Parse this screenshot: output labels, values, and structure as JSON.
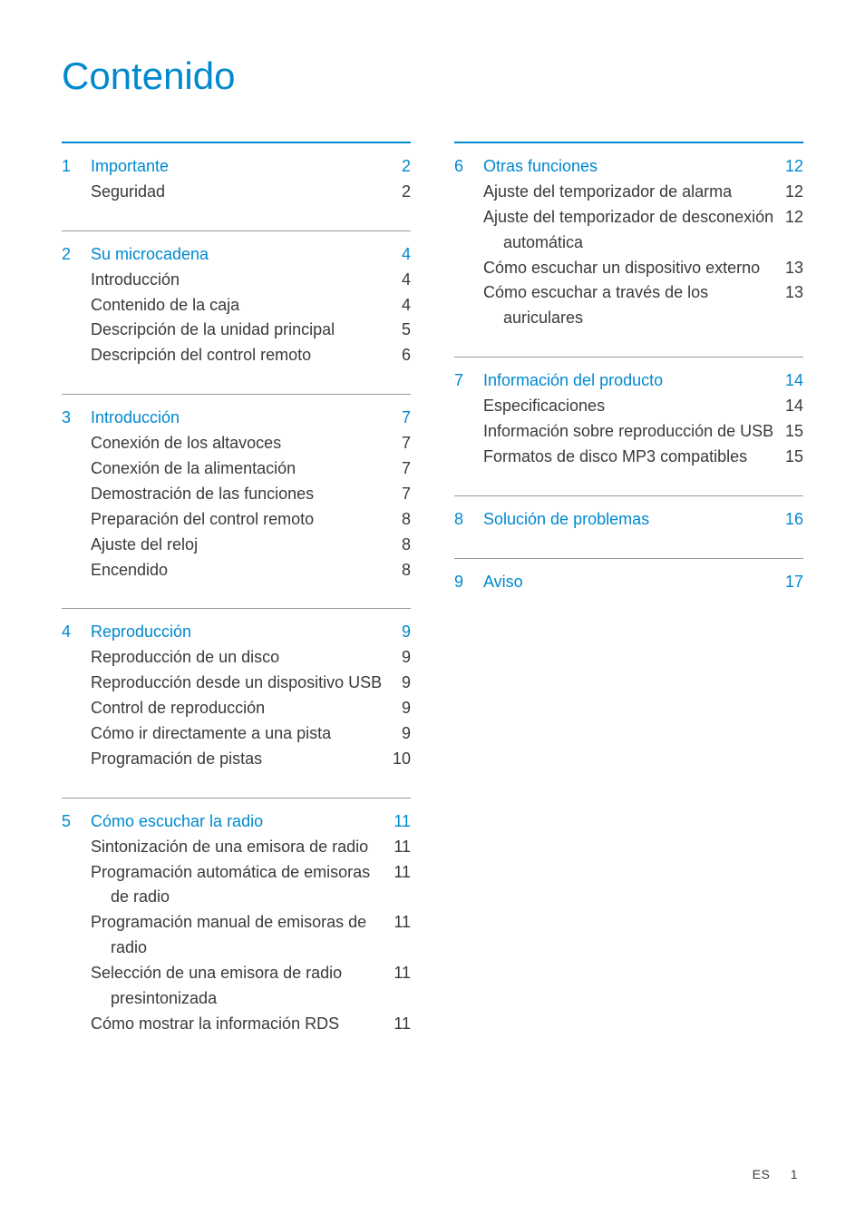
{
  "title": "Contenido",
  "brand_color": "#0089cf",
  "text_color": "#3a3a3a",
  "font_family": "Segoe UI, Helvetica Neue, Arial, sans-serif",
  "title_fontsize": 42,
  "body_fontsize": 18,
  "left_column": [
    {
      "number": "1",
      "heading": "Importante",
      "page": "2",
      "items": [
        {
          "label": "Seguridad",
          "page": "2"
        }
      ]
    },
    {
      "number": "2",
      "heading": "Su microcadena",
      "page": "4",
      "items": [
        {
          "label": "Introducción",
          "page": "4"
        },
        {
          "label": "Contenido de la caja",
          "page": "4"
        },
        {
          "label": "Descripción de la unidad principal",
          "page": "5"
        },
        {
          "label": "Descripción del control remoto",
          "page": "6"
        }
      ]
    },
    {
      "number": "3",
      "heading": "Introducción",
      "page": "7",
      "items": [
        {
          "label": "Conexión de los altavoces",
          "page": "7"
        },
        {
          "label": "Conexión de la alimentación",
          "page": "7"
        },
        {
          "label": "Demostración de las funciones",
          "page": "7"
        },
        {
          "label": "Preparación del control remoto",
          "page": "8"
        },
        {
          "label": "Ajuste del reloj",
          "page": "8"
        },
        {
          "label": "Encendido",
          "page": "8"
        }
      ]
    },
    {
      "number": "4",
      "heading": "Reproducción",
      "page": "9",
      "items": [
        {
          "label": "Reproducción de un disco",
          "page": "9"
        },
        {
          "label": "Reproducción desde un dispositivo USB",
          "page": "9"
        },
        {
          "label": "Control de reproducción",
          "page": "9"
        },
        {
          "label": "Cómo ir directamente a una pista",
          "page": "9"
        },
        {
          "label": "Programación de pistas",
          "page": "10"
        }
      ]
    },
    {
      "number": "5",
      "heading": "Cómo escuchar la radio",
      "page": "11",
      "items": [
        {
          "label": "Sintonización de una emisora de radio",
          "page": "11"
        },
        {
          "label": "Programación automática de emisoras de radio",
          "page": "11",
          "indent": true
        },
        {
          "label": "Programación manual de emisoras de radio",
          "page": "11",
          "indent": true
        },
        {
          "label": "Selección de una emisora de radio presintonizada",
          "page": "11",
          "indent": true
        },
        {
          "label": "Cómo mostrar la información RDS",
          "page": "11"
        }
      ]
    }
  ],
  "right_column": [
    {
      "number": "6",
      "heading": "Otras funciones",
      "page": "12",
      "items": [
        {
          "label": "Ajuste del temporizador de alarma",
          "page": "12"
        },
        {
          "label": "Ajuste del temporizador de desconexión automática",
          "page": "12",
          "indent": true
        },
        {
          "label": "Cómo escuchar un dispositivo externo",
          "page": "13"
        },
        {
          "label": "Cómo escuchar a través de los auriculares",
          "page": "13",
          "indent": true
        }
      ]
    },
    {
      "number": "7",
      "heading": "Información del producto",
      "page": "14",
      "items": [
        {
          "label": "Especificaciones",
          "page": "14"
        },
        {
          "label": "Información sobre reproducción de USB",
          "page": "15"
        },
        {
          "label": "Formatos de disco MP3 compatibles",
          "page": "15"
        }
      ]
    },
    {
      "number": "8",
      "heading": "Solución de problemas",
      "page": "16",
      "items": []
    },
    {
      "number": "9",
      "heading": "Aviso",
      "page": "17",
      "items": []
    }
  ],
  "footer": {
    "lang": "ES",
    "page_number": "1"
  }
}
